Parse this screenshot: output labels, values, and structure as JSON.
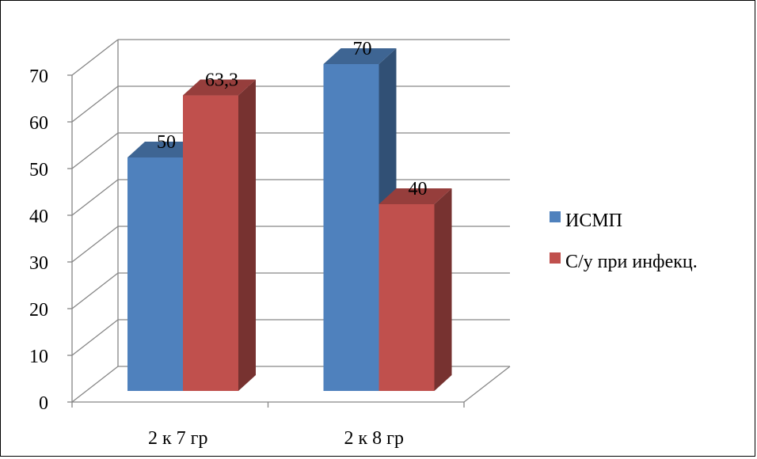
{
  "chart_data": {
    "type": "bar",
    "categories": [
      "2 к 7 гр",
      "2 к 8 гр"
    ],
    "series": [
      {
        "name": "ИСМП",
        "values": [
          50,
          70
        ],
        "color": "#4f81bd"
      },
      {
        "name": "С/у при инфекц.",
        "values": [
          63.3,
          40
        ],
        "color": "#c0504d"
      }
    ],
    "data_labels": [
      [
        "50",
        "70"
      ],
      [
        "63,3",
        "40"
      ]
    ],
    "yticks": [
      0,
      10,
      20,
      30,
      40,
      50,
      60,
      70
    ],
    "ylim": [
      0,
      70
    ],
    "gridlines": true,
    "legend_position": "right",
    "three_d": true
  }
}
